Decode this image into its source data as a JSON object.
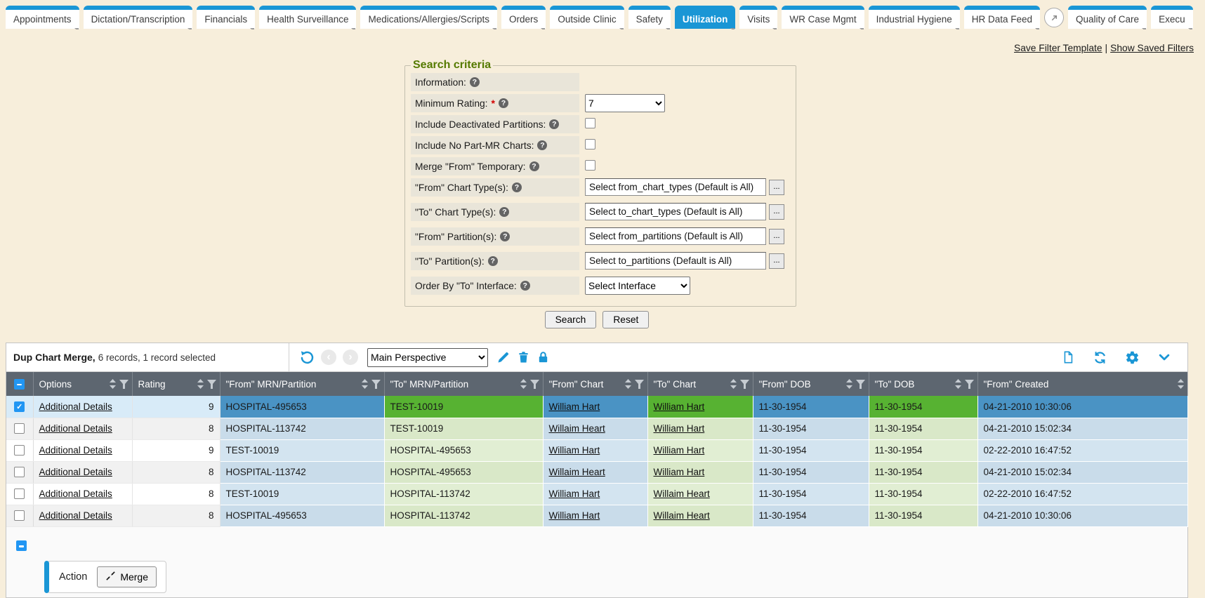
{
  "colors": {
    "accent_blue": "#1a96d5",
    "checkbox_blue": "#2196f3",
    "page_bg": "#f7eedb",
    "panel_header_bg": "#5d6670",
    "selected_from_blue": "#4a93c4",
    "selected_to_green": "#57b232",
    "from_col_bg": "#d3e4f0",
    "from_col_bg_alt": "#c9dcea",
    "to_col_bg": "#e1eed3",
    "to_col_bg_alt": "#d9e8c8",
    "selected_plain_bg": "#d8ebf8",
    "alt_row_bg": "#f1f1f1",
    "legend_green": "#557a00"
  },
  "tab_bar": {
    "tabs": [
      {
        "label": "Appointments"
      },
      {
        "label": "Dictation/Transcription"
      },
      {
        "label": "Financials"
      },
      {
        "label": "Health Surveillance"
      },
      {
        "label": "Medications/Allergies/Scripts"
      },
      {
        "label": "Orders"
      },
      {
        "label": "Outside Clinic"
      },
      {
        "label": "Safety"
      },
      {
        "label": "Utilization",
        "active": true
      },
      {
        "label": "Visits"
      },
      {
        "label": "WR Case Mgmt"
      },
      {
        "label": "Industrial Hygiene"
      },
      {
        "label": "HR Data Feed"
      },
      {
        "type": "icon",
        "name": "open-arrow-circle-icon"
      },
      {
        "label": "Quality of Care"
      },
      {
        "label": "Execu"
      }
    ]
  },
  "filter_links": {
    "save_filter_template": "Save Filter Template",
    "separator": "|",
    "show_saved_filters": "Show Saved Filters"
  },
  "search_criteria": {
    "legend": "Search criteria",
    "fields": [
      {
        "label": "Information:",
        "help_icon": true,
        "type": "label-only"
      },
      {
        "label": "Minimum Rating:",
        "required": true,
        "help_icon": true,
        "type": "select",
        "value": "7"
      },
      {
        "label": "Include Deactivated Partitions:",
        "help_icon": true,
        "type": "checkbox",
        "checked": false
      },
      {
        "label": "Include No Part-MR Charts:",
        "help_icon": true,
        "type": "checkbox",
        "checked": false
      },
      {
        "label": "Merge \"From\" Temporary:",
        "help_icon": true,
        "type": "checkbox",
        "checked": false
      },
      {
        "label": "\"From\" Chart Type(s):",
        "help_icon": true,
        "type": "picker",
        "value": "Select from_chart_types (Default is All)",
        "browse_label": "..."
      },
      {
        "label": "\"To\" Chart Type(s):",
        "help_icon": true,
        "type": "picker",
        "value": "Select to_chart_types (Default is All)",
        "browse_label": "..."
      },
      {
        "label": "\"From\" Partition(s):",
        "help_icon": true,
        "type": "picker",
        "value": "Select from_partitions (Default is All)",
        "browse_label": "..."
      },
      {
        "label": "\"To\" Partition(s):",
        "help_icon": true,
        "type": "picker",
        "value": "Select to_partitions (Default is All)",
        "browse_label": "..."
      },
      {
        "label": "Order By \"To\" Interface:",
        "help_icon": true,
        "type": "select",
        "value": "Select Interface"
      }
    ],
    "buttons": {
      "search": "Search",
      "reset": "Reset"
    }
  },
  "grid": {
    "title": "Dup Chart Merge,",
    "record_summary": "6 records, 1 record selected",
    "perspective_select": {
      "value": "Main Perspective"
    },
    "toolbar_icons_left": [
      "undo-icon",
      "nav-back-icon",
      "nav-forward-icon",
      "edit-pencil-icon",
      "delete-trash-icon",
      "lock-icon"
    ],
    "toolbar_icons_right": [
      "new-document-icon",
      "refresh-icon",
      "settings-gear-icon",
      "collapse-chevron-icon"
    ],
    "columns": [
      {
        "label": "Options",
        "filter": true
      },
      {
        "label": "Rating",
        "filter": true
      },
      {
        "label": "\"From\" MRN/Partition",
        "filter": true
      },
      {
        "label": "\"To\" MRN/Partition",
        "filter": true
      },
      {
        "label": "\"From\" Chart",
        "filter": true
      },
      {
        "label": "\"To\" Chart",
        "filter": true
      },
      {
        "label": "\"From\" DOB",
        "filter": true
      },
      {
        "label": "\"To\" DOB",
        "filter": true
      },
      {
        "label": "\"From\" Created",
        "filter": false
      }
    ],
    "rows": [
      {
        "selected": true,
        "options": "Additional Details",
        "rating": "9",
        "from_mrn": "HOSPITAL-495653",
        "to_mrn": "TEST-10019",
        "from_chart": "William Hart",
        "to_chart": "William Hart",
        "from_dob": "11-30-1954",
        "to_dob": "11-30-1954",
        "from_created": "04-21-2010 10:30:06"
      },
      {
        "selected": false,
        "options": "Additional Details",
        "rating": "8",
        "from_mrn": "HOSPITAL-113742",
        "to_mrn": "TEST-10019",
        "from_chart": "Willaim Heart",
        "to_chart": "William Hart",
        "from_dob": "11-30-1954",
        "to_dob": "11-30-1954",
        "from_created": "04-21-2010 15:02:34"
      },
      {
        "selected": false,
        "options": "Additional Details",
        "rating": "9",
        "from_mrn": "TEST-10019",
        "from_chart": "William Hart",
        "to_mrn": "HOSPITAL-495653",
        "to_chart": "William Hart",
        "from_dob": "11-30-1954",
        "to_dob": "11-30-1954",
        "from_created": "02-22-2010 16:47:52"
      },
      {
        "selected": false,
        "options": "Additional Details",
        "rating": "8",
        "from_mrn": "HOSPITAL-113742",
        "to_mrn": "HOSPITAL-495653",
        "from_chart": "Willaim Heart",
        "to_chart": "William Hart",
        "from_dob": "11-30-1954",
        "to_dob": "11-30-1954",
        "from_created": "04-21-2010 15:02:34"
      },
      {
        "selected": false,
        "options": "Additional Details",
        "rating": "8",
        "from_mrn": "TEST-10019",
        "to_mrn": "HOSPITAL-113742",
        "from_chart": "William Hart",
        "to_chart": "Willaim Heart",
        "from_dob": "11-30-1954",
        "to_dob": "11-30-1954",
        "from_created": "02-22-2010 16:47:52"
      },
      {
        "selected": false,
        "options": "Additional Details",
        "rating": "8",
        "from_mrn": "HOSPITAL-495653",
        "to_mrn": "HOSPITAL-113742",
        "from_chart": "William Hart",
        "to_chart": "Willaim Heart",
        "from_dob": "11-30-1954",
        "to_dob": "11-30-1954",
        "from_created": "04-21-2010 10:30:06"
      }
    ],
    "action": {
      "label": "Action",
      "merge_button": "Merge",
      "merge_icon": "merge-arrows-icon"
    }
  }
}
